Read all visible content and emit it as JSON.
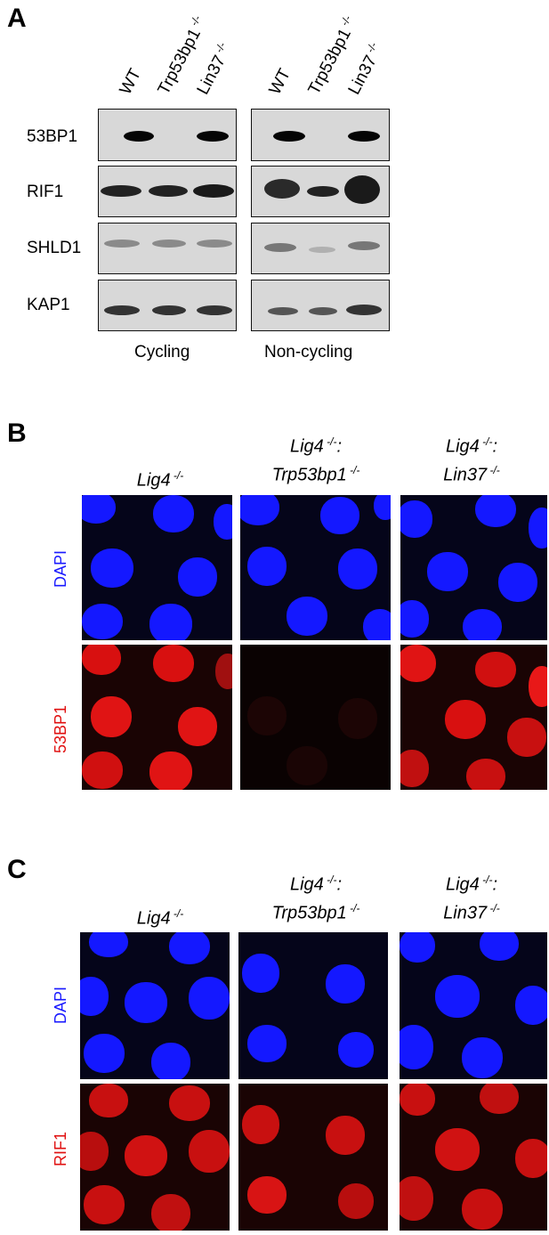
{
  "panels": {
    "A": {
      "letter": "A",
      "lanes": [
        {
          "name": "WT",
          "sup": ""
        },
        {
          "name": "Trp53bp1",
          "sup": " -/-"
        },
        {
          "name": "Lin37",
          "sup": " -/-"
        }
      ],
      "rows": [
        "53BP1",
        "RIF1",
        "SHLD1",
        "KAP1"
      ],
      "groups": [
        "Cycling",
        "Non-cycling"
      ]
    },
    "B": {
      "letter": "B",
      "conditions": [
        {
          "line1": "Lig4",
          "sup1": " -/-",
          "line2": "",
          "sup2": ""
        },
        {
          "line1": "Lig4",
          "sup1": " -/-",
          "line1_end": ":",
          "line2": "Trp53bp1",
          "sup2": " -/-"
        },
        {
          "line1": "Lig4",
          "sup1": " -/-",
          "line1_end": ":",
          "line2": "Lin37",
          "sup2": " -/-"
        }
      ],
      "channels": [
        "DAPI",
        "53BP1"
      ]
    },
    "C": {
      "letter": "C",
      "conditions": [
        {
          "line1": "Lig4",
          "sup1": " -/-",
          "line2": "",
          "sup2": ""
        },
        {
          "line1": "Lig4",
          "sup1": " -/-",
          "line1_end": ":",
          "line2": "Trp53bp1",
          "sup2": " -/-"
        },
        {
          "line1": "Lig4",
          "sup1": " -/-",
          "line1_end": ":",
          "line2": "Lin37",
          "sup2": " -/-"
        }
      ],
      "channels": [
        "DAPI",
        "RIF1"
      ]
    }
  },
  "colors": {
    "dapi": "#1a1aff",
    "red_stain": "#e01010",
    "blot_bg": "#d8d8d8"
  }
}
